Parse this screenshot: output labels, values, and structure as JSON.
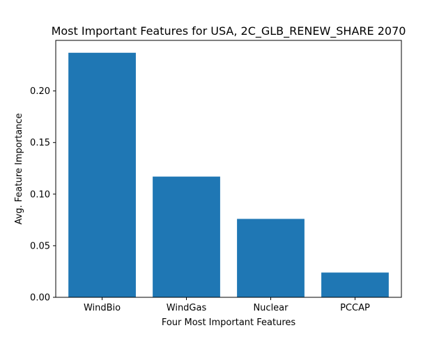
{
  "chart_data": {
    "type": "bar",
    "title": "Most Important Features for USA, 2C_GLB_RENEW_SHARE 2070",
    "xlabel": "Four Most Important Features",
    "ylabel": "Avg. Feature Importance",
    "categories": [
      "WindBio",
      "WindGas",
      "Nuclear",
      "PCCAP"
    ],
    "values": [
      0.237,
      0.117,
      0.076,
      0.024
    ],
    "ylim": [
      0,
      0.249
    ],
    "yticks": [
      0.0,
      0.05,
      0.1,
      0.15,
      0.2
    ],
    "ytick_labels": [
      "0.00",
      "0.05",
      "0.10",
      "0.15",
      "0.20"
    ],
    "grid": false,
    "colors": {
      "bar": "#1f77b4",
      "axis": "#000000"
    }
  }
}
